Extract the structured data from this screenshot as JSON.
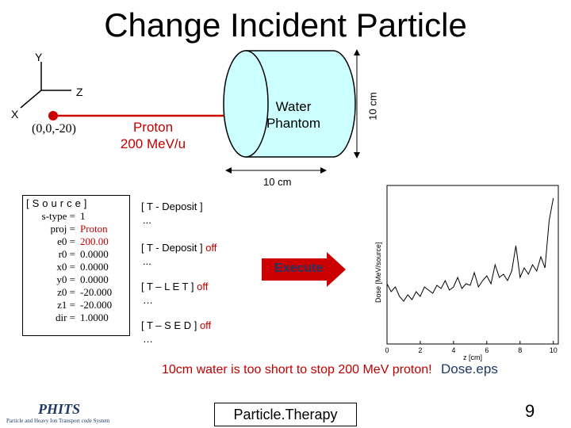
{
  "title": "Change Incident Particle",
  "axes": {
    "y": "Y",
    "z": "Z",
    "x": "X"
  },
  "origin_label": "(0,0,-20)",
  "beam": {
    "line1": "Proton",
    "line2": "200 MeV/u"
  },
  "phantom": {
    "line1": "Water",
    "line2": "Phantom",
    "length_label": "10 cm",
    "diameter_label": "10 cm"
  },
  "source": {
    "header": "[Source]",
    "rows": [
      {
        "key": "s-type =",
        "value": "1"
      },
      {
        "key": "proj =",
        "value": "Proton"
      },
      {
        "key": "e0 =",
        "value": "200.00"
      },
      {
        "key": "r0 =",
        "value": "0.0000"
      },
      {
        "key": "x0 =",
        "value": "0.0000"
      },
      {
        "key": "y0 =",
        "value": "0.0000"
      },
      {
        "key": "z0 =",
        "value": "-20.000"
      },
      {
        "key": "z1 =",
        "value": "-20.000"
      },
      {
        "key": "dir =",
        "value": "1.0000"
      }
    ]
  },
  "tallies": [
    {
      "label": "[ T - Deposit ]",
      "state": "",
      "dots": "..."
    },
    {
      "label": "[ T - Deposit ]",
      "state": "off",
      "dots": "..."
    },
    {
      "label": "[ T – L E T ]",
      "state": "off",
      "dots": "…"
    },
    {
      "label": "[ T – S E D ]",
      "state": "off",
      "dots": "…"
    }
  ],
  "execute_label": "Execute",
  "note": "10cm water is too short to stop 200 MeV proton!",
  "dose_caption": "Dose.eps",
  "footer": {
    "logo": "PHITS",
    "logo_sub": "Particle and Heavy Ion Transport code System",
    "center": "Particle.Therapy",
    "page": "9"
  },
  "colors": {
    "phantom_fill": "#ccffff",
    "arrow": "#cc0000",
    "execute_fill": "#cc0000",
    "accent_red": "#c00000",
    "accent_navy": "#1f3864"
  },
  "chart_data": {
    "type": "line",
    "title": "",
    "xlabel": "z [cm]",
    "ylabel": "Dose [MeV/source]",
    "xlim": [
      0,
      10.3
    ],
    "ylim": [
      0,
      1
    ],
    "xticks": [
      "0",
      "2",
      "4",
      "6",
      "8",
      "10"
    ],
    "y_tick_labels_shown": false,
    "grid": false,
    "x": [
      0.0,
      0.25,
      0.5,
      0.75,
      1.0,
      1.25,
      1.5,
      1.75,
      2.0,
      2.25,
      2.5,
      2.75,
      3.0,
      3.25,
      3.5,
      3.75,
      4.0,
      4.25,
      4.5,
      4.75,
      5.0,
      5.25,
      5.5,
      5.75,
      6.0,
      6.25,
      6.5,
      6.75,
      7.0,
      7.25,
      7.5,
      7.75,
      8.0,
      8.25,
      8.5,
      8.75,
      9.0,
      9.25,
      9.5,
      9.75,
      10.0
    ],
    "y": [
      0.38,
      0.33,
      0.36,
      0.3,
      0.27,
      0.31,
      0.28,
      0.33,
      0.3,
      0.36,
      0.34,
      0.32,
      0.37,
      0.35,
      0.4,
      0.34,
      0.36,
      0.42,
      0.35,
      0.38,
      0.37,
      0.45,
      0.36,
      0.4,
      0.43,
      0.38,
      0.5,
      0.42,
      0.44,
      0.4,
      0.46,
      0.62,
      0.42,
      0.48,
      0.44,
      0.5,
      0.46,
      0.55,
      0.48,
      0.78,
      0.92
    ]
  }
}
